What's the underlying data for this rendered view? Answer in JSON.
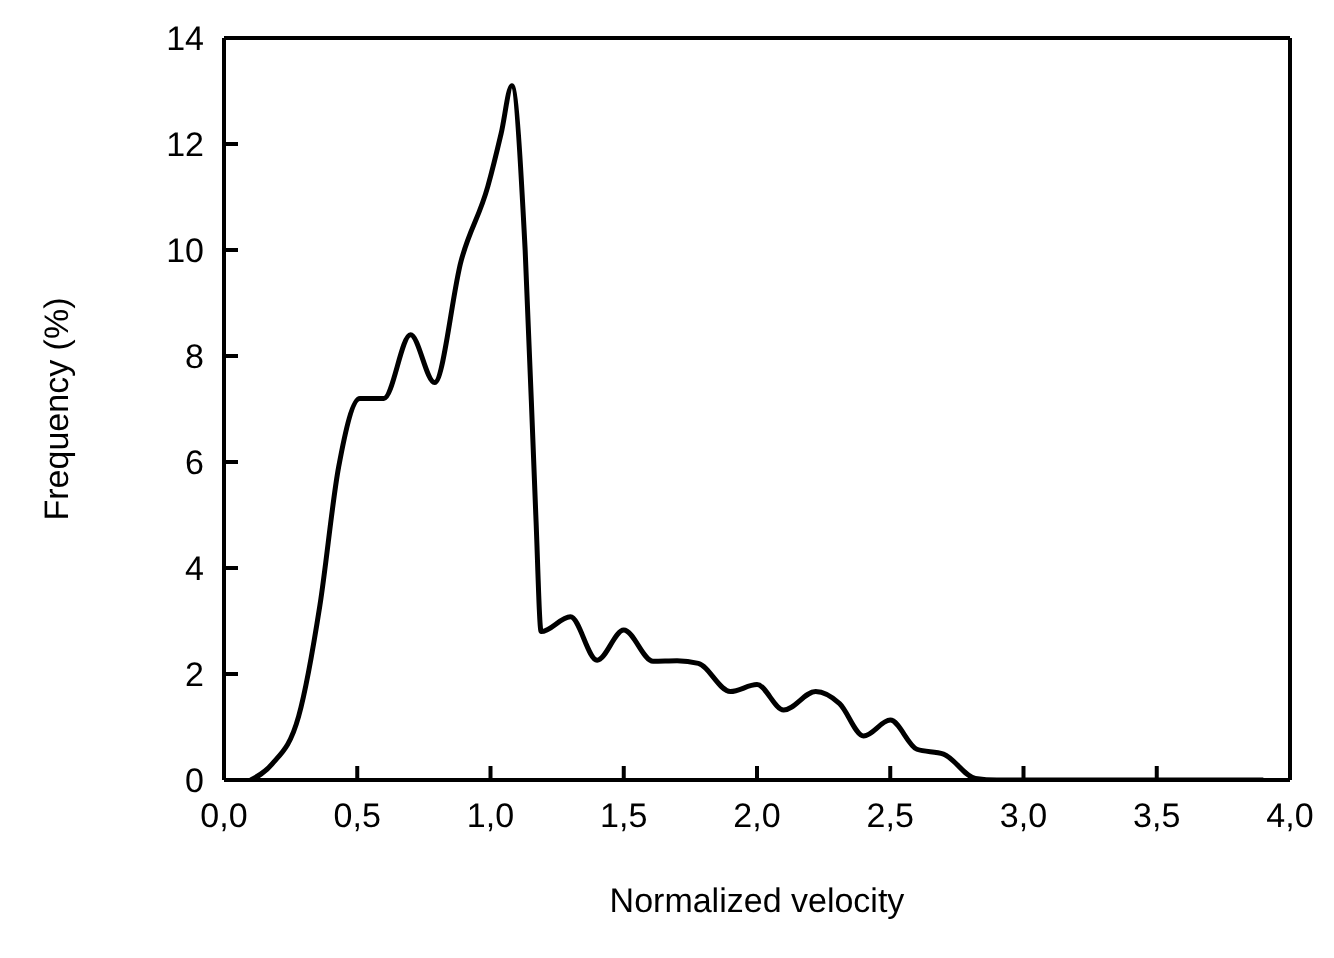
{
  "chart_data": {
    "type": "line",
    "xlabel": "Normalized velocity",
    "ylabel": "Frequency (%)",
    "x": [
      0.1,
      0.18,
      0.28,
      0.36,
      0.43,
      0.51,
      0.6,
      0.7,
      0.79,
      0.89,
      0.99,
      1.04,
      1.08,
      1.13,
      1.17,
      1.19,
      1.3,
      1.4,
      1.5,
      1.61,
      1.7,
      1.78,
      1.9,
      2.0,
      2.1,
      2.22,
      2.31,
      2.4,
      2.5,
      2.6,
      2.7,
      2.82,
      2.9,
      3.5,
      3.9
    ],
    "series": [
      {
        "color": "#000000",
        "values": [
          0,
          0.3,
          1.2,
          3.3,
          5.9,
          7.2,
          7.2,
          8.4,
          7.5,
          9.8,
          11.2,
          12.2,
          13.1,
          10,
          5,
          2.8,
          3.08,
          2.26,
          2.83,
          2.24,
          2.25,
          2.2,
          1.67,
          1.8,
          1.32,
          1.67,
          1.44,
          0.83,
          1.13,
          0.58,
          0.49,
          0.03,
          0,
          0,
          0
        ]
      }
    ],
    "xlim": [
      0,
      4
    ],
    "xticks": [
      {
        "value": 0,
        "label": "0,0"
      },
      {
        "value": 0.5,
        "label": "0,5"
      },
      {
        "value": 1,
        "label": "1,0"
      },
      {
        "value": 1.5,
        "label": "1,5"
      },
      {
        "value": 2,
        "label": "2,0"
      },
      {
        "value": 2.5,
        "label": "2,5"
      },
      {
        "value": 3,
        "label": "3,0"
      },
      {
        "value": 3.5,
        "label": "3,5"
      },
      {
        "value": 4,
        "label": "4,0"
      }
    ],
    "ylim": [
      0,
      14
    ],
    "yticks": [
      0,
      2,
      4,
      6,
      8,
      10,
      12,
      14
    ],
    "legend": false,
    "marker": "none",
    "line_style": "solid"
  }
}
